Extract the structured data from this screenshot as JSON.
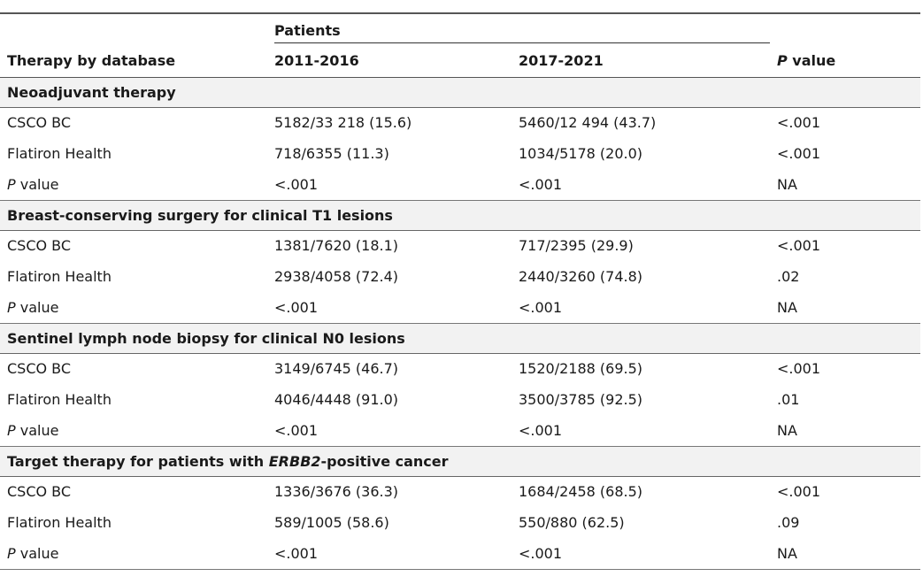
{
  "header": {
    "group_label": "Patients",
    "col1": "Therapy by database",
    "col2": "2011-2016",
    "col3": "2017-2021",
    "col4_italic": "P",
    "col4_rest": " value"
  },
  "sections": [
    {
      "title_pre": "Neoadjuvant therapy",
      "title_italic": "",
      "title_post": "",
      "rows": [
        {
          "label": "CSCO BC",
          "p2011": "5182/33 218 (15.6)",
          "p2017": "5460/12 494 (43.7)",
          "pval": "<.001"
        },
        {
          "label": "Flatiron Health",
          "p2011": "718/6355 (11.3)",
          "p2017": "1034/5178 (20.0)",
          "pval": "<.001"
        },
        {
          "label_italic": "P",
          "label_rest": " value",
          "p2011": "<.001",
          "p2017": "<.001",
          "pval": "NA"
        }
      ]
    },
    {
      "title_pre": "Breast-conserving surgery for clinical T1 lesions",
      "title_italic": "",
      "title_post": "",
      "rows": [
        {
          "label": "CSCO BC",
          "p2011": "1381/7620 (18.1)",
          "p2017": "717/2395 (29.9)",
          "pval": "<.001"
        },
        {
          "label": "Flatiron Health",
          "p2011": "2938/4058 (72.4)",
          "p2017": "2440/3260 (74.8)",
          "pval": ".02"
        },
        {
          "label_italic": "P",
          "label_rest": " value",
          "p2011": "<.001",
          "p2017": "<.001",
          "pval": "NA"
        }
      ]
    },
    {
      "title_pre": "Sentinel lymph node biopsy for clinical N0 lesions",
      "title_italic": "",
      "title_post": "",
      "rows": [
        {
          "label": "CSCO BC",
          "p2011": "3149/6745 (46.7)",
          "p2017": "1520/2188 (69.5)",
          "pval": "<.001"
        },
        {
          "label": "Flatiron Health",
          "p2011": "4046/4448 (91.0)",
          "p2017": "3500/3785 (92.5)",
          "pval": ".01"
        },
        {
          "label_italic": "P",
          "label_rest": " value",
          "p2011": "<.001",
          "p2017": "<.001",
          "pval": "NA"
        }
      ]
    },
    {
      "title_pre": "Target therapy for patients with ",
      "title_italic": "ERBB2",
      "title_post": "-positive cancer",
      "rows": [
        {
          "label": "CSCO BC",
          "p2011": "1336/3676 (36.3)",
          "p2017": "1684/2458 (68.5)",
          "pval": "<.001"
        },
        {
          "label": "Flatiron Health",
          "p2011": "589/1005 (58.6)",
          "p2017": "550/880 (62.5)",
          "pval": ".09"
        },
        {
          "label_italic": "P",
          "label_rest": " value",
          "p2011": "<.001",
          "p2017": "<.001",
          "pval": "NA"
        }
      ]
    }
  ]
}
